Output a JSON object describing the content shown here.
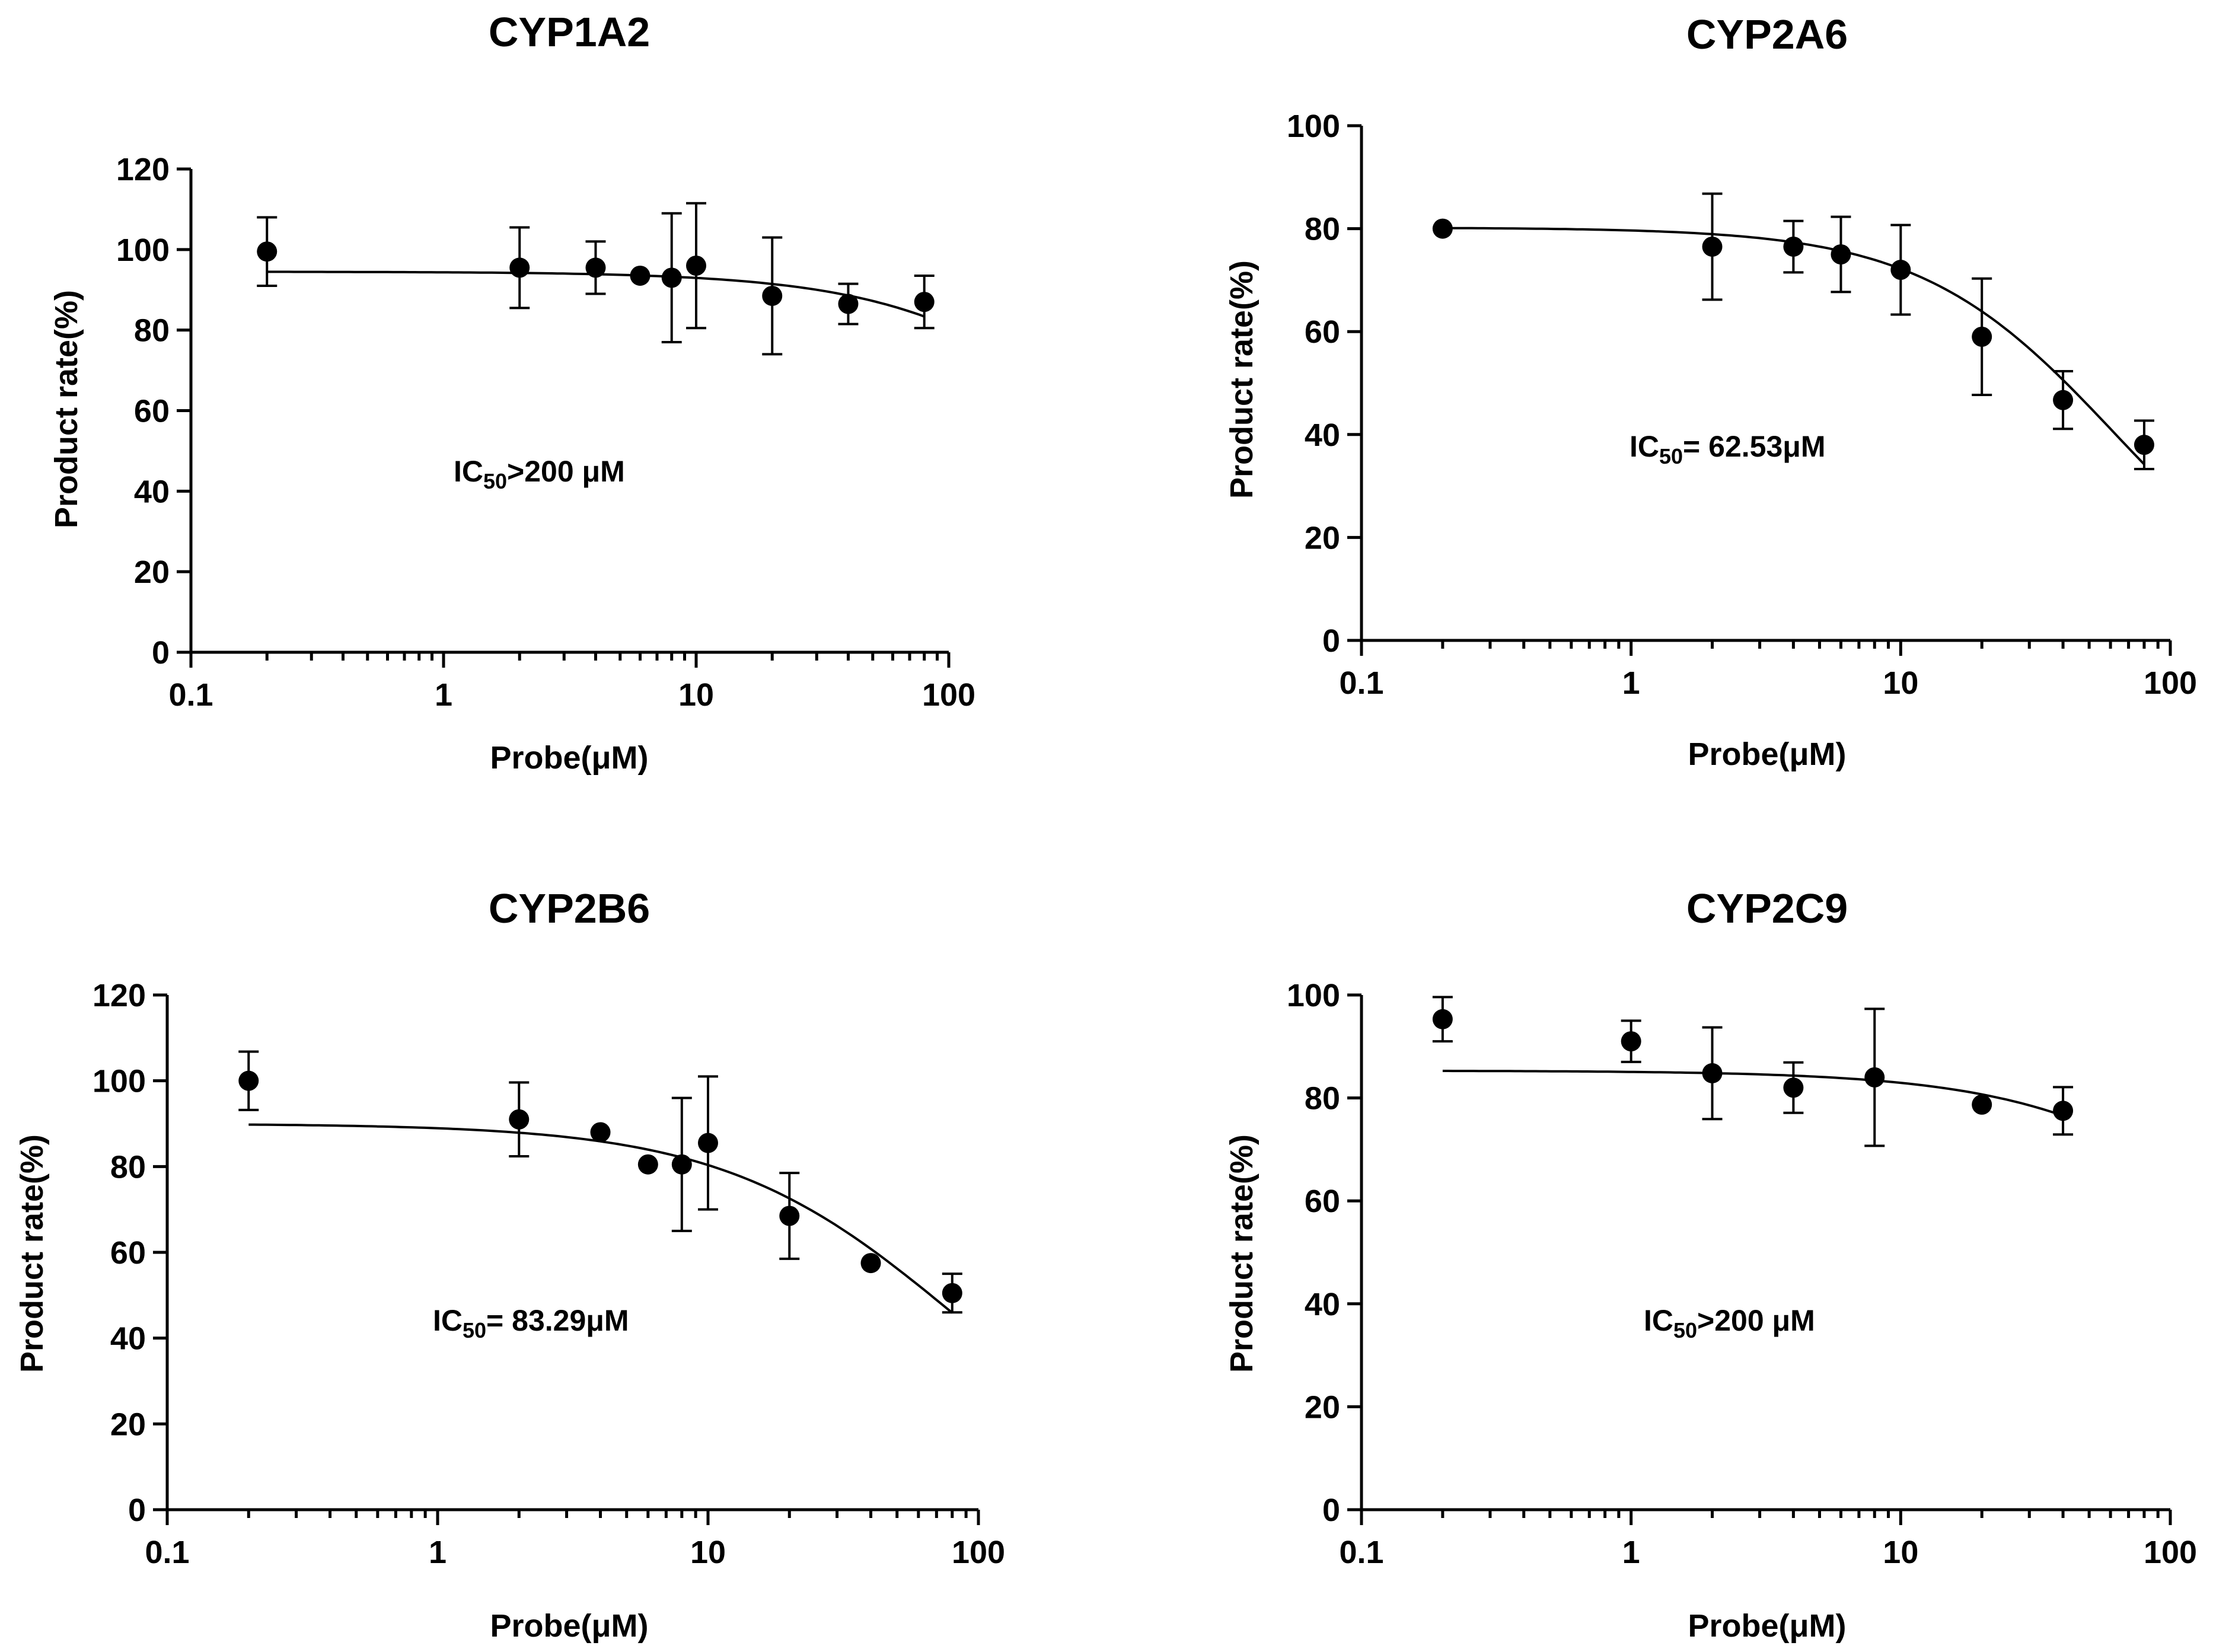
{
  "chart_data": [
    {
      "type": "scatter",
      "title": "CYP1A2",
      "xlabel": "Probe(μM)",
      "ylabel": "Product rate(%)",
      "xscale": "log",
      "xlim": [
        0.1,
        100
      ],
      "ylim": [
        0,
        120
      ],
      "xticks": [
        "0.1",
        "1",
        "10",
        "100"
      ],
      "yticks": [
        "0",
        "20",
        "40",
        "60",
        "80",
        "100",
        "120"
      ],
      "annotation": {
        "prefix": "IC",
        "sub": "50",
        "suffix": ">200 μM"
      },
      "points": [
        {
          "x": 0.2,
          "y": 99.5,
          "err": 8.5
        },
        {
          "x": 2,
          "y": 95.5,
          "err": 10
        },
        {
          "x": 4,
          "y": 95.5,
          "err": 6.5
        },
        {
          "x": 6,
          "y": 93.5,
          "err": 0
        },
        {
          "x": 8,
          "y": 93,
          "err": 16
        },
        {
          "x": 10,
          "y": 96,
          "err": 15.5
        },
        {
          "x": 20,
          "y": 88.5,
          "err": 14.5
        },
        {
          "x": 40,
          "y": 86.5,
          "err": 5
        },
        {
          "x": 80,
          "y": 87,
          "err": 6.5
        }
      ],
      "fit": {
        "top": 94.5,
        "ic50": 600,
        "hill": 1,
        "from": 0.2,
        "to": 80
      }
    },
    {
      "type": "scatter",
      "title": "CYP2A6",
      "xlabel": "Probe(μM)",
      "ylabel": "Product rate(%)",
      "xscale": "log",
      "xlim": [
        0.1,
        100
      ],
      "ylim": [
        0,
        100
      ],
      "xticks": [
        "0.1",
        "1",
        "10",
        "100"
      ],
      "yticks": [
        "0",
        "20",
        "40",
        "60",
        "80",
        "100"
      ],
      "annotation": {
        "prefix": "IC",
        "sub": "50",
        "suffix": "= 62.53μM"
      },
      "points": [
        {
          "x": 0.2,
          "y": 80,
          "err": 0
        },
        {
          "x": 2,
          "y": 76.5,
          "err": 10.3
        },
        {
          "x": 4,
          "y": 76.5,
          "err": 5
        },
        {
          "x": 6,
          "y": 75,
          "err": 7.3
        },
        {
          "x": 10,
          "y": 72,
          "err": 8.7
        },
        {
          "x": 20,
          "y": 59,
          "err": 11.3
        },
        {
          "x": 40,
          "y": 46.7,
          "err": 5.6
        },
        {
          "x": 80,
          "y": 38,
          "err": 4.7
        }
      ],
      "fit": {
        "top": 80.2,
        "ic50": 62.53,
        "hill": 1.2,
        "from": 0.2,
        "to": 80
      }
    },
    {
      "type": "scatter",
      "title": "CYP2B6",
      "xlabel": "Probe(μM)",
      "ylabel": "Product rate(%)",
      "xscale": "log",
      "xlim": [
        0.1,
        100
      ],
      "ylim": [
        0,
        120
      ],
      "xticks": [
        "0.1",
        "1",
        "10",
        "100"
      ],
      "yticks": [
        "0",
        "20",
        "40",
        "60",
        "80",
        "100",
        "120"
      ],
      "annotation": {
        "prefix": "IC",
        "sub": "50",
        "suffix": "= 83.29μM"
      },
      "points": [
        {
          "x": 0.2,
          "y": 100,
          "err": 6.8
        },
        {
          "x": 2,
          "y": 91,
          "err": 8.6
        },
        {
          "x": 4,
          "y": 88,
          "err": 0
        },
        {
          "x": 6,
          "y": 80.5,
          "err": 0
        },
        {
          "x": 8,
          "y": 80.5,
          "err": 15.5
        },
        {
          "x": 10,
          "y": 85.5,
          "err": 15.5
        },
        {
          "x": 20,
          "y": 68.5,
          "err": 10
        },
        {
          "x": 40,
          "y": 57.5,
          "err": 0
        },
        {
          "x": 80,
          "y": 50.5,
          "err": 4.5
        }
      ],
      "fit": {
        "top": 90,
        "ic50": 83.29,
        "hill": 1,
        "from": 0.2,
        "to": 80
      }
    },
    {
      "type": "scatter",
      "title": "CYP2C9",
      "xlabel": "Probe(μM)",
      "ylabel": "Product rate(%)",
      "xscale": "log",
      "xlim": [
        0.1,
        100
      ],
      "ylim": [
        0,
        100
      ],
      "xticks": [
        "0.1",
        "1",
        "10",
        "100"
      ],
      "yticks": [
        "0",
        "20",
        "40",
        "60",
        "80",
        "100"
      ],
      "annotation": {
        "prefix": "IC",
        "sub": "50",
        "suffix": ">200 μM"
      },
      "points": [
        {
          "x": 0.2,
          "y": 95.3,
          "err": 4.3
        },
        {
          "x": 1,
          "y": 91,
          "err": 4
        },
        {
          "x": 2,
          "y": 84.8,
          "err": 8.9
        },
        {
          "x": 4,
          "y": 82,
          "err": 4.9
        },
        {
          "x": 8,
          "y": 84,
          "err": 13.3
        },
        {
          "x": 20,
          "y": 78.7,
          "err": 0
        },
        {
          "x": 40,
          "y": 77.5,
          "err": 4.6
        }
      ],
      "fit": {
        "top": 85.3,
        "ic50": 350,
        "hill": 1,
        "from": 0.2,
        "to": 40
      }
    }
  ]
}
